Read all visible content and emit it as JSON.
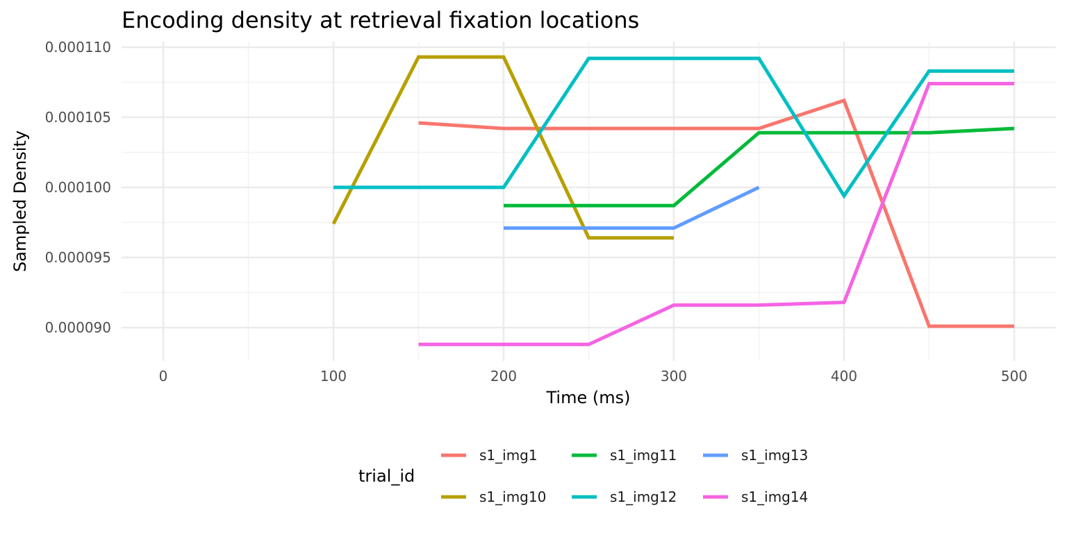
{
  "chart_data": {
    "type": "line",
    "title": "Encoding density at retrieval fixation locations",
    "xlabel": "Time (ms)",
    "ylabel": "Sampled Density",
    "xlim": [
      -25,
      525
    ],
    "ylim": [
      8.85e-05,
      0.00011
    ],
    "x_ticks": [
      0,
      100,
      200,
      300,
      400,
      500
    ],
    "x_tick_labels": [
      "0",
      "100",
      "200",
      "300",
      "400",
      "500"
    ],
    "y_ticks": [
      9e-05,
      9.5e-05,
      0.0001,
      0.000105,
      0.00011
    ],
    "y_tick_labels": [
      "0.000090",
      "0.000095",
      "0.000100",
      "0.000105",
      "0.000110"
    ],
    "grid": true,
    "legend": {
      "title": "trial_id",
      "position": "bottom"
    },
    "series": [
      {
        "name": "s1_img1",
        "color": "#F8766D",
        "x": [
          150,
          200,
          250,
          300,
          350,
          400,
          450,
          500
        ],
        "values": [
          0.0001046,
          0.0001042,
          0.0001042,
          0.0001042,
          0.0001042,
          0.0001062,
          9.01e-05,
          9.01e-05
        ]
      },
      {
        "name": "s1_img10",
        "color": "#B79F00",
        "x": [
          100,
          150,
          200,
          250,
          300
        ],
        "values": [
          9.74e-05,
          0.0001093,
          0.0001093,
          9.64e-05,
          9.64e-05
        ]
      },
      {
        "name": "s1_img11",
        "color": "#00BA38",
        "x": [
          200,
          250,
          300,
          350,
          400,
          450,
          500
        ],
        "values": [
          9.87e-05,
          9.87e-05,
          9.87e-05,
          0.0001039,
          0.0001039,
          0.0001039,
          0.0001042
        ]
      },
      {
        "name": "s1_img12",
        "color": "#00BFC4",
        "x": [
          100,
          150,
          200,
          250,
          300,
          350,
          400,
          450,
          500
        ],
        "values": [
          0.0001,
          0.0001,
          0.0001,
          0.0001092,
          0.0001092,
          0.0001092,
          9.94e-05,
          0.0001083,
          0.0001083
        ]
      },
      {
        "name": "s1_img13",
        "color": "#619CFF",
        "x": [
          200,
          250,
          300,
          350
        ],
        "values": [
          9.71e-05,
          9.71e-05,
          9.71e-05,
          0.0001
        ]
      },
      {
        "name": "s1_img14",
        "color": "#F564E3",
        "x": [
          150,
          200,
          250,
          300,
          350,
          400,
          450,
          500
        ],
        "values": [
          8.88e-05,
          8.88e-05,
          8.88e-05,
          9.16e-05,
          9.16e-05,
          9.18e-05,
          0.0001074,
          0.0001074
        ]
      }
    ]
  }
}
